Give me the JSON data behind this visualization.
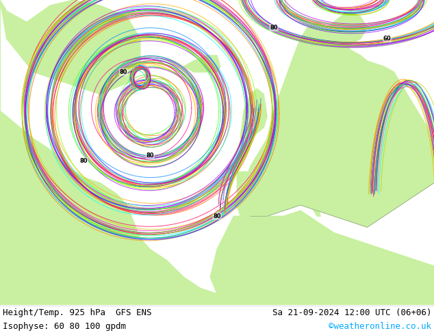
{
  "title_left": "Height/Temp. 925 hPa  GFS ENS",
  "title_right": "Sa 21-09-2024 12:00 UTC (06+06)",
  "subtitle_left": "Isophyse: 60 80 100 gpdm",
  "subtitle_right": "©weatheronline.co.uk",
  "subtitle_right_color": "#00aaff",
  "bg_color": "#ffffff",
  "land_color": "#c8f0a0",
  "sea_color": "#d0d0d0",
  "footer_bg": "#ffffff",
  "text_color": "#000000",
  "font_size_title": 9,
  "font_size_subtitle": 9,
  "figsize": [
    6.34,
    4.9
  ],
  "dpi": 100
}
